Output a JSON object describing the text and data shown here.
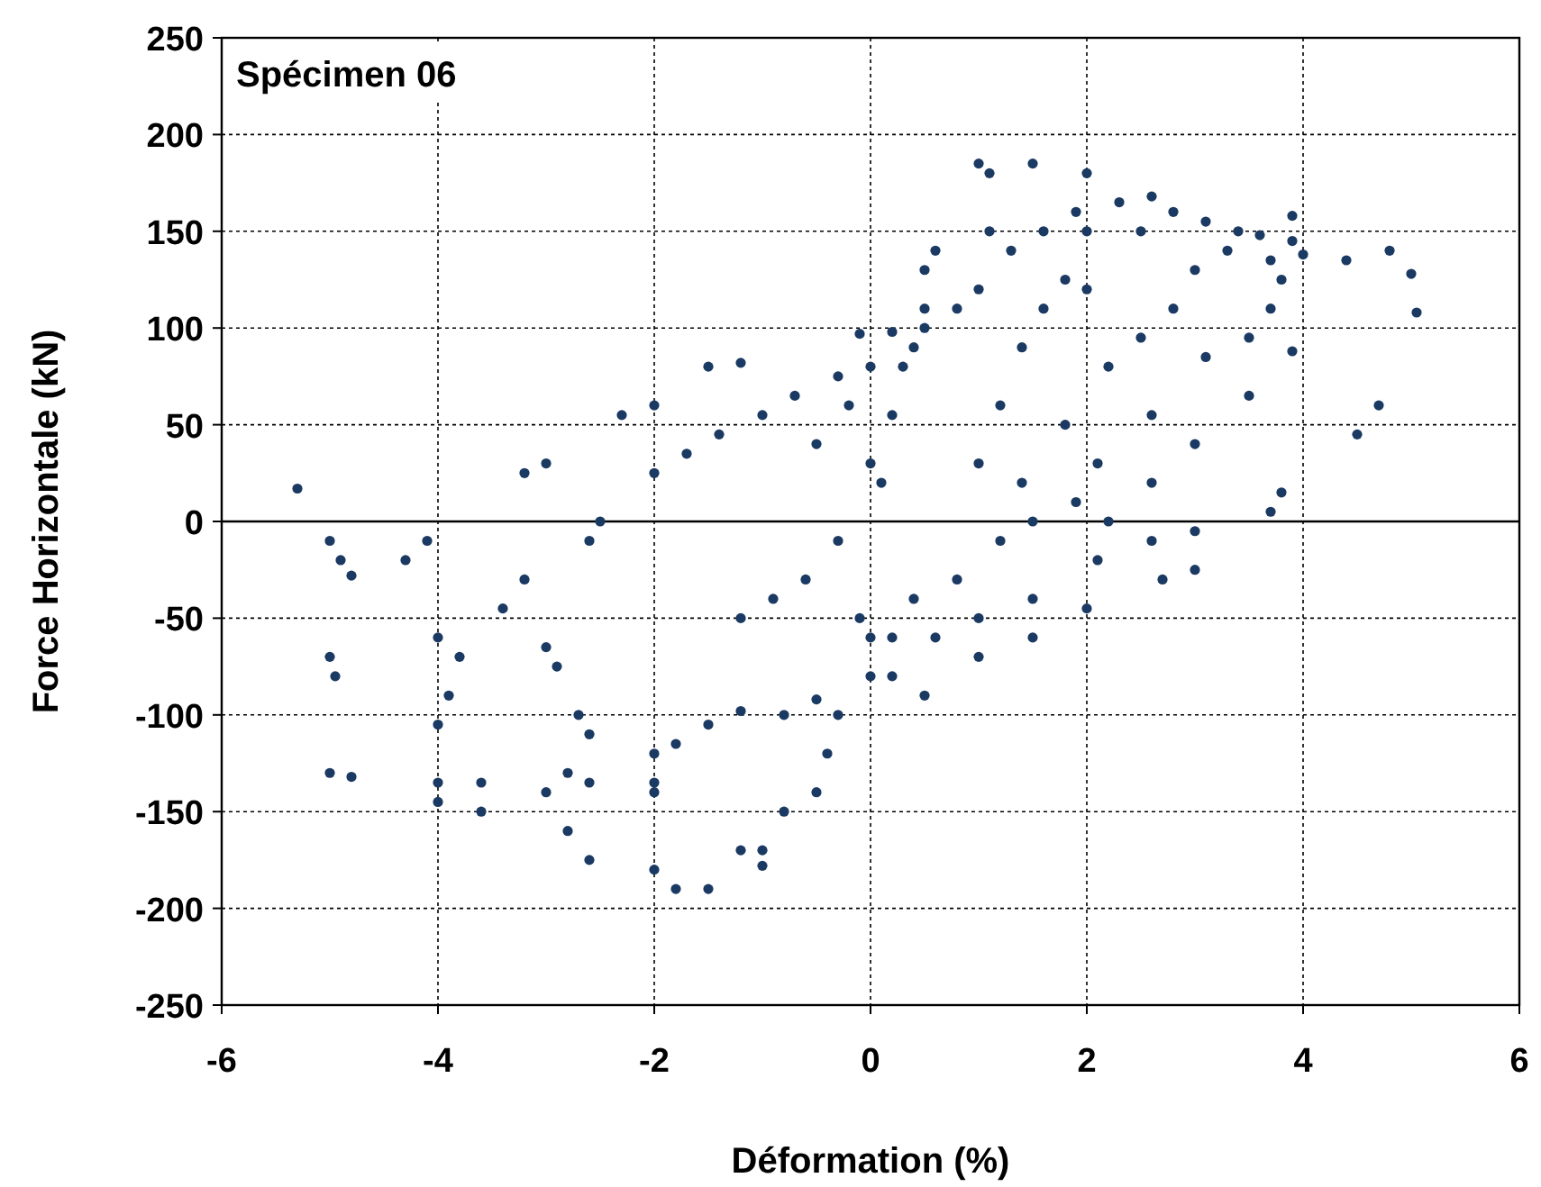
{
  "chart_data": {
    "type": "scatter",
    "title": "Spécimen 06",
    "xlabel": "Déformation (%)",
    "ylabel": "Force Horizontale (kN)",
    "xlim": [
      -6,
      6
    ],
    "xticks": [
      -6,
      -4,
      -2,
      0,
      2,
      4,
      6
    ],
    "ylim": [
      -250,
      250
    ],
    "yticks": [
      -250,
      -200,
      -150,
      -100,
      -50,
      0,
      50,
      100,
      150,
      200,
      250
    ],
    "grid": true,
    "marker": "circle",
    "ref_lines": [
      {
        "axis": "y",
        "value": 0,
        "color": "#000000",
        "line_style": "solid"
      }
    ],
    "series": [
      {
        "color": "#1b3a63",
        "x": [
          -5.3,
          -5,
          -4.9,
          -4.8,
          -5,
          -4.95,
          -5,
          -4.8,
          -4.1,
          -4.3,
          -4,
          -3.8,
          -3.9,
          -4,
          -4,
          -3.6,
          -4,
          -3.6,
          -3.2,
          -3,
          -3.2,
          -3.4,
          -3,
          -2.9,
          -2.8,
          -2.6,
          -3,
          -2.8,
          -2.6,
          -2.6,
          -2.5,
          -2.7,
          -2.6,
          -2.3,
          -2,
          -2,
          -1.7,
          -1.4,
          -1,
          -0.7,
          -0.3,
          0,
          0.2,
          -0.1,
          -1.5,
          -1.2,
          -2,
          -1.8,
          -1.5,
          -1.2,
          -0.8,
          -0.5,
          -2,
          -1.8,
          -1.5,
          -1.2,
          -1,
          -2,
          -2,
          -1.2,
          -0.9,
          -0.6,
          -0.3,
          0,
          0.2,
          0.4,
          0.5,
          -0.5,
          -0.3,
          -0.1,
          0.1,
          0.3,
          0.5,
          0.6,
          -1,
          -0.8,
          -0.4,
          0,
          0.2,
          0.5,
          0.8,
          1,
          1.1,
          1,
          1.1,
          1.3,
          1.6,
          1.9,
          2,
          1.5,
          2,
          2.3,
          2.6,
          2.5,
          2.8,
          3.1,
          3.4,
          3.6,
          3.9,
          3,
          3.3,
          3.7,
          4,
          4.4,
          4.8,
          5,
          5.05,
          1,
          1.2,
          1.4,
          1.6,
          1.8,
          2,
          1.4,
          1.8,
          2.2,
          2.5,
          2.8,
          2.1,
          2.6,
          3.1,
          3.5,
          3.7,
          3.8,
          3.9,
          2.2,
          2.6,
          3,
          3.5,
          3.9,
          4.5,
          4.7,
          3.7,
          3.8,
          0,
          0.4,
          0.8,
          1.2,
          1.5,
          1.9,
          0.2,
          0.6,
          1,
          1.5,
          2.1,
          2.6,
          3,
          0.5,
          1,
          1.5,
          2,
          2.7,
          3,
          -0.5,
          -0.2
        ],
        "values": [
          17,
          -10,
          -20,
          -28,
          -70,
          -80,
          -130,
          -132,
          -10,
          -20,
          -60,
          -70,
          -90,
          -105,
          -135,
          -135,
          -145,
          -150,
          25,
          30,
          -30,
          -45,
          -65,
          -75,
          -130,
          -135,
          -140,
          -160,
          -175,
          -10,
          0,
          -100,
          -110,
          55,
          60,
          25,
          35,
          45,
          55,
          65,
          75,
          80,
          98,
          97,
          80,
          82,
          -120,
          -115,
          -105,
          -98,
          -100,
          -92,
          -180,
          -190,
          -190,
          -170,
          -178,
          -135,
          -140,
          -50,
          -40,
          -30,
          -10,
          30,
          55,
          90,
          110,
          -140,
          -100,
          -50,
          20,
          80,
          130,
          140,
          -170,
          -150,
          -120,
          -80,
          -60,
          100,
          110,
          120,
          150,
          185,
          180,
          140,
          150,
          160,
          150,
          185,
          180,
          165,
          168,
          150,
          160,
          155,
          150,
          148,
          158,
          130,
          140,
          135,
          138,
          135,
          140,
          128,
          108,
          30,
          60,
          90,
          110,
          125,
          120,
          20,
          50,
          80,
          95,
          110,
          30,
          55,
          85,
          95,
          110,
          125,
          145,
          0,
          20,
          40,
          65,
          88,
          45,
          60,
          5,
          15,
          -60,
          -40,
          -30,
          -10,
          0,
          10,
          -80,
          -60,
          -50,
          -40,
          -20,
          -10,
          -5,
          -90,
          -70,
          -60,
          -45,
          -30,
          -25,
          40,
          60
        ]
      }
    ]
  }
}
